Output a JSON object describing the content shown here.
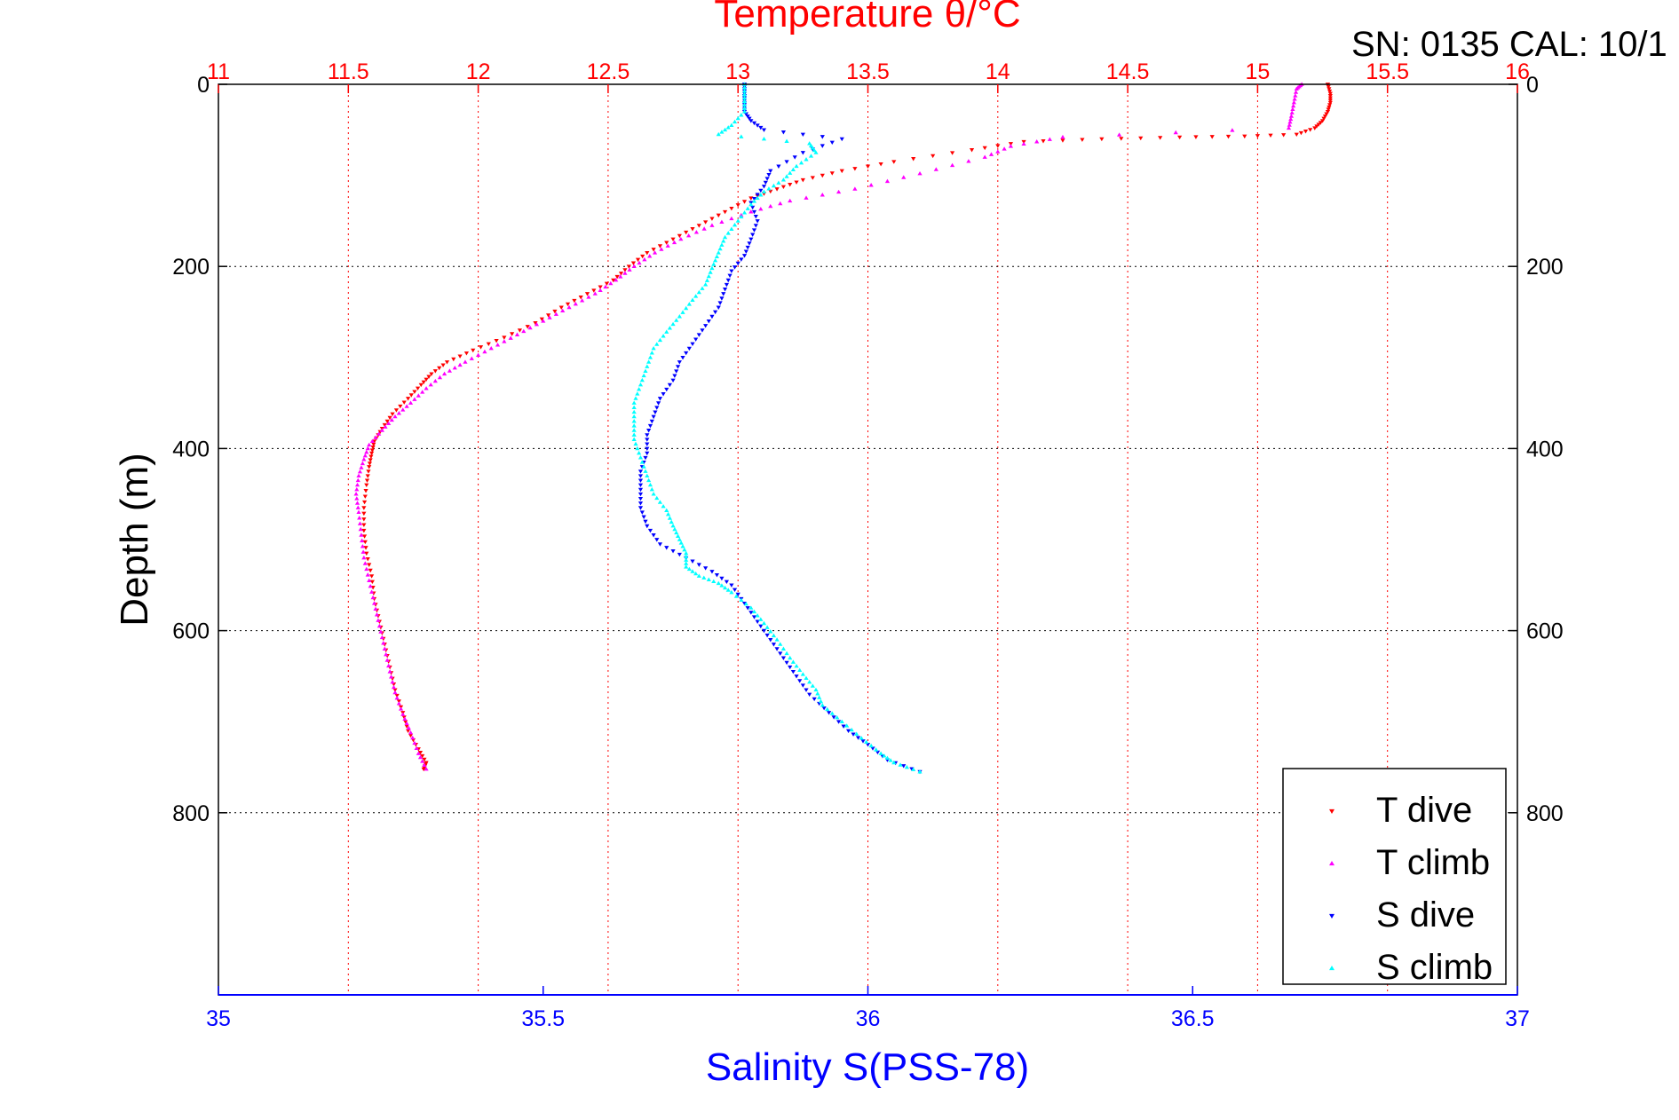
{
  "chart_data": {
    "type": "scatter",
    "title": "Temperature θ/°C",
    "annotation": "SN: 0135  CAL: 10/1",
    "xlabel": "Salinity S(PSS-78)",
    "ylabel": "Depth (m)",
    "ylim": [
      0,
      1000
    ],
    "y_inverted": true,
    "y_ticks": [
      0,
      200,
      400,
      600,
      800
    ],
    "x_bottom": {
      "range": [
        35,
        37
      ],
      "ticks": [
        "35",
        "35.5",
        "36",
        "36.5",
        "37"
      ],
      "color": "#0000ff"
    },
    "x_top": {
      "range": [
        11,
        16
      ],
      "ticks": [
        "11",
        "11.5",
        "12",
        "12.5",
        "13",
        "13.5",
        "14",
        "14.5",
        "15",
        "15.5",
        "16"
      ],
      "color": "#ff0000"
    },
    "grid": true,
    "legend_position": "bottom-right",
    "series": [
      {
        "name": "T dive",
        "axis": "top",
        "color": "#ff0000",
        "marker": "triangle-down",
        "points": [
          [
            15.27,
            0
          ],
          [
            15.28,
            10
          ],
          [
            15.28,
            20
          ],
          [
            15.27,
            30
          ],
          [
            15.25,
            40
          ],
          [
            15.22,
            48
          ],
          [
            15.15,
            55
          ],
          [
            14.95,
            57
          ],
          [
            14.7,
            58
          ],
          [
            14.4,
            60
          ],
          [
            14.1,
            63
          ],
          [
            13.9,
            72
          ],
          [
            13.6,
            85
          ],
          [
            13.4,
            95
          ],
          [
            13.25,
            105
          ],
          [
            13.15,
            115
          ],
          [
            13.05,
            125
          ],
          [
            12.95,
            140
          ],
          [
            12.85,
            155
          ],
          [
            12.75,
            170
          ],
          [
            12.65,
            185
          ],
          [
            12.58,
            200
          ],
          [
            12.52,
            215
          ],
          [
            12.42,
            230
          ],
          [
            12.32,
            245
          ],
          [
            12.22,
            262
          ],
          [
            12.1,
            278
          ],
          [
            11.98,
            292
          ],
          [
            11.88,
            305
          ],
          [
            11.82,
            318
          ],
          [
            11.78,
            330
          ],
          [
            11.73,
            345
          ],
          [
            11.67,
            362
          ],
          [
            11.63,
            378
          ],
          [
            11.6,
            392
          ],
          [
            11.59,
            405
          ],
          [
            11.58,
            420
          ],
          [
            11.57,
            440
          ],
          [
            11.56,
            465
          ],
          [
            11.56,
            490
          ],
          [
            11.57,
            515
          ],
          [
            11.59,
            540
          ],
          [
            11.6,
            565
          ],
          [
            11.62,
            590
          ],
          [
            11.64,
            615
          ],
          [
            11.66,
            640
          ],
          [
            11.68,
            665
          ],
          [
            11.71,
            690
          ],
          [
            11.73,
            710
          ],
          [
            11.77,
            730
          ],
          [
            11.8,
            745
          ],
          [
            11.79,
            752
          ]
        ]
      },
      {
        "name": "T climb",
        "axis": "top",
        "color": "#ff00ff",
        "marker": "triangle-up",
        "points": [
          [
            11.8,
            752
          ],
          [
            11.77,
            735
          ],
          [
            11.74,
            712
          ],
          [
            11.71,
            692
          ],
          [
            11.68,
            668
          ],
          [
            11.66,
            645
          ],
          [
            11.64,
            620
          ],
          [
            11.62,
            595
          ],
          [
            11.6,
            570
          ],
          [
            11.58,
            545
          ],
          [
            11.56,
            520
          ],
          [
            11.55,
            495
          ],
          [
            11.54,
            470
          ],
          [
            11.53,
            450
          ],
          [
            11.54,
            430
          ],
          [
            11.56,
            412
          ],
          [
            11.58,
            396
          ],
          [
            11.63,
            380
          ],
          [
            11.68,
            365
          ],
          [
            11.74,
            350
          ],
          [
            11.8,
            334
          ],
          [
            11.87,
            318
          ],
          [
            11.95,
            305
          ],
          [
            12.05,
            290
          ],
          [
            12.15,
            275
          ],
          [
            12.25,
            260
          ],
          [
            12.35,
            245
          ],
          [
            12.45,
            230
          ],
          [
            12.53,
            215
          ],
          [
            12.6,
            200
          ],
          [
            12.68,
            185
          ],
          [
            12.78,
            170
          ],
          [
            12.9,
            155
          ],
          [
            13.05,
            140
          ],
          [
            13.2,
            128
          ],
          [
            13.45,
            115
          ],
          [
            13.7,
            98
          ],
          [
            13.95,
            80
          ],
          [
            14.05,
            68
          ],
          [
            14.25,
            58
          ],
          [
            15.12,
            48
          ],
          [
            15.13,
            35
          ],
          [
            15.14,
            20
          ],
          [
            15.15,
            5
          ],
          [
            15.17,
            0
          ]
        ]
      },
      {
        "name": "S dive",
        "axis": "bottom",
        "color": "#0000ff",
        "marker": "triangle-down",
        "points": [
          [
            35.81,
            0
          ],
          [
            35.81,
            10
          ],
          [
            35.81,
            20
          ],
          [
            35.81,
            30
          ],
          [
            35.82,
            40
          ],
          [
            35.84,
            50
          ],
          [
            35.96,
            60
          ],
          [
            35.9,
            75
          ],
          [
            35.85,
            95
          ],
          [
            35.84,
            112
          ],
          [
            35.82,
            130
          ],
          [
            35.83,
            150
          ],
          [
            35.82,
            170
          ],
          [
            35.81,
            188
          ],
          [
            35.79,
            205
          ],
          [
            35.78,
            225
          ],
          [
            35.77,
            245
          ],
          [
            35.75,
            265
          ],
          [
            35.73,
            285
          ],
          [
            35.71,
            305
          ],
          [
            35.7,
            325
          ],
          [
            35.68,
            345
          ],
          [
            35.67,
            365
          ],
          [
            35.66,
            385
          ],
          [
            35.66,
            405
          ],
          [
            35.65,
            425
          ],
          [
            35.65,
            445
          ],
          [
            35.65,
            465
          ],
          [
            35.66,
            485
          ],
          [
            35.68,
            505
          ],
          [
            35.72,
            520
          ],
          [
            35.76,
            535
          ],
          [
            35.79,
            550
          ],
          [
            35.81,
            570
          ],
          [
            35.83,
            590
          ],
          [
            35.85,
            610
          ],
          [
            35.87,
            630
          ],
          [
            35.89,
            650
          ],
          [
            35.91,
            670
          ],
          [
            35.94,
            690
          ],
          [
            35.97,
            710
          ],
          [
            36.0,
            725
          ],
          [
            36.03,
            742
          ],
          [
            36.08,
            755
          ]
        ]
      },
      {
        "name": "S climb",
        "axis": "bottom",
        "color": "#00ffff",
        "marker": "triangle-up",
        "points": [
          [
            36.08,
            755
          ],
          [
            36.04,
            745
          ],
          [
            36.02,
            735
          ],
          [
            35.99,
            718
          ],
          [
            35.96,
            700
          ],
          [
            35.93,
            682
          ],
          [
            35.92,
            665
          ],
          [
            35.9,
            648
          ],
          [
            35.88,
            630
          ],
          [
            35.86,
            610
          ],
          [
            35.84,
            592
          ],
          [
            35.82,
            575
          ],
          [
            35.79,
            558
          ],
          [
            35.77,
            548
          ],
          [
            35.74,
            540
          ],
          [
            35.72,
            530
          ],
          [
            35.72,
            515
          ],
          [
            35.71,
            500
          ],
          [
            35.7,
            485
          ],
          [
            35.69,
            468
          ],
          [
            35.67,
            450
          ],
          [
            35.66,
            430
          ],
          [
            35.65,
            410
          ],
          [
            35.64,
            390
          ],
          [
            35.64,
            370
          ],
          [
            35.64,
            350
          ],
          [
            35.65,
            330
          ],
          [
            35.66,
            310
          ],
          [
            35.67,
            290
          ],
          [
            35.69,
            272
          ],
          [
            35.71,
            255
          ],
          [
            35.73,
            237
          ],
          [
            35.75,
            220
          ],
          [
            35.76,
            202
          ],
          [
            35.77,
            185
          ],
          [
            35.78,
            168
          ],
          [
            35.8,
            150
          ],
          [
            35.82,
            132
          ],
          [
            35.84,
            118
          ],
          [
            35.87,
            105
          ],
          [
            35.89,
            90
          ],
          [
            35.92,
            75
          ],
          [
            35.91,
            65
          ],
          [
            35.77,
            55
          ],
          [
            35.79,
            45
          ],
          [
            35.81,
            30
          ],
          [
            35.81,
            15
          ],
          [
            35.81,
            0
          ]
        ]
      }
    ]
  }
}
